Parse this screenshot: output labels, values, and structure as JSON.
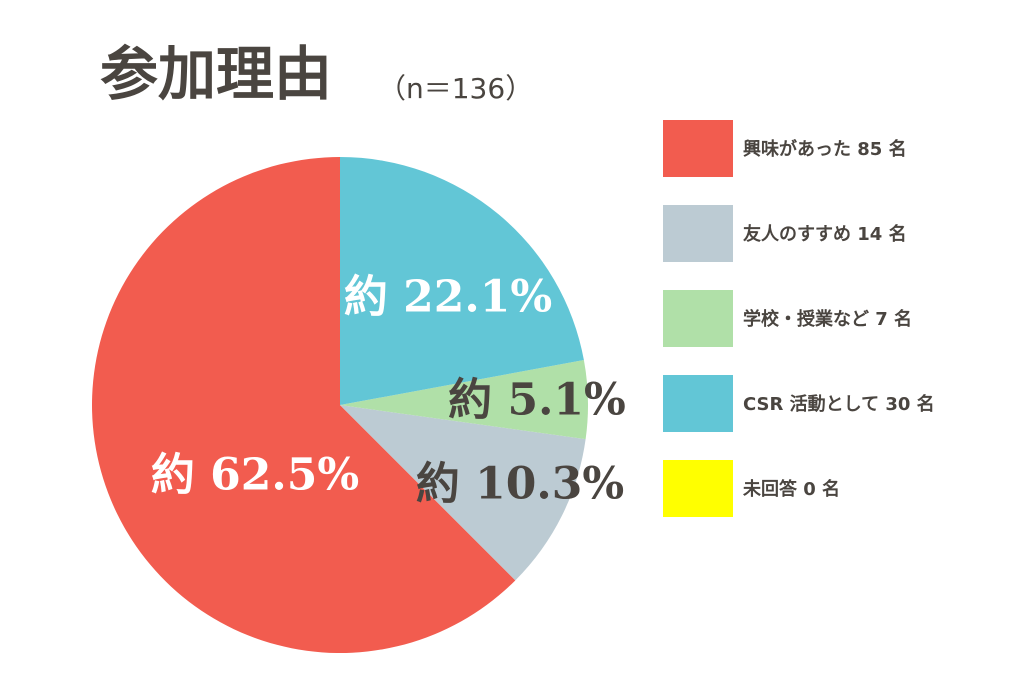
{
  "chart_data": {
    "type": "pie",
    "title": "参加理由",
    "subtitle": "（n＝136）",
    "categories": [
      "興味があった 85 名",
      "友人のすすめ 14 名",
      "学校・授業など 7 名",
      "CSR 活動として 30 名",
      "未回答 0 名"
    ],
    "values": [
      62.5,
      10.3,
      5.1,
      22.1,
      0
    ],
    "value_labels": [
      "約 62.5%",
      "約 10.3%",
      "約 5.1%",
      "約 22.1%",
      null
    ],
    "colors": [
      "#f25c4f",
      "#bccbd3",
      "#b0e0a8",
      "#62c6d6",
      "#ffff00"
    ],
    "legend": "right"
  }
}
